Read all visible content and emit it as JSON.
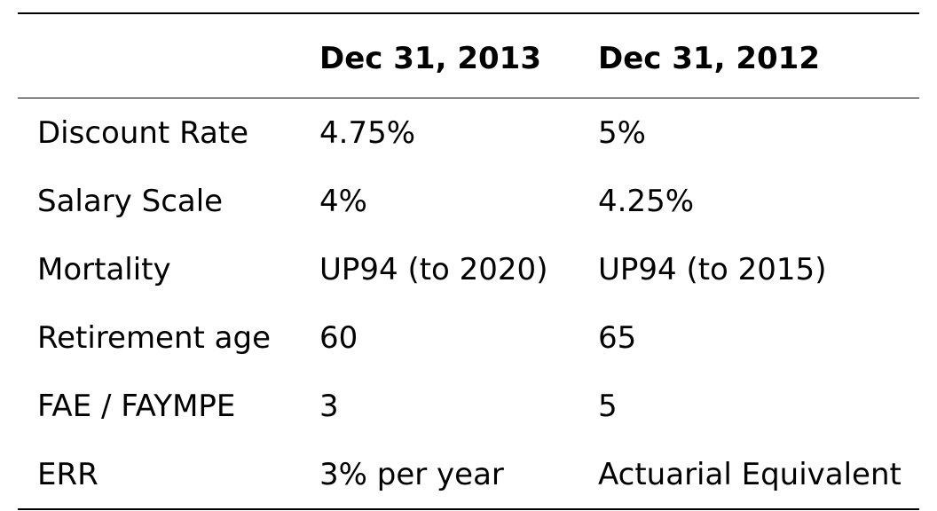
{
  "table": {
    "headers": [
      "",
      "Dec 31, 2013",
      "Dec 31, 2012"
    ],
    "rows": [
      [
        "Discount Rate",
        "4.75%",
        "5%"
      ],
      [
        "Salary Scale",
        "4%",
        "4.25%"
      ],
      [
        "Mortality",
        "UP94 (to 2020)",
        "UP94 (to 2015)"
      ],
      [
        "Retirement age",
        "60",
        "65"
      ],
      [
        "FAE / FAYMPE",
        "3",
        "5"
      ],
      [
        "ERR",
        "3% per year",
        "Actuarial Equivalent"
      ]
    ]
  }
}
